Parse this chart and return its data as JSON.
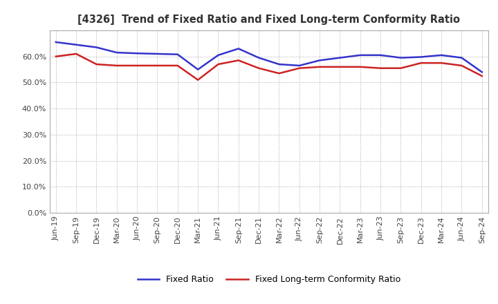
{
  "title": "[4326]  Trend of Fixed Ratio and Fixed Long-term Conformity Ratio",
  "x_labels": [
    "Jun-19",
    "Sep-19",
    "Dec-19",
    "Mar-20",
    "Jun-20",
    "Sep-20",
    "Dec-20",
    "Mar-21",
    "Jun-21",
    "Sep-21",
    "Dec-21",
    "Mar-22",
    "Jun-22",
    "Sep-22",
    "Dec-22",
    "Mar-23",
    "Jun-23",
    "Sep-23",
    "Dec-23",
    "Mar-24",
    "Jun-24",
    "Sep-24"
  ],
  "fixed_ratio": [
    65.5,
    64.5,
    63.5,
    61.5,
    61.2,
    61.0,
    60.8,
    55.0,
    60.5,
    63.0,
    59.5,
    57.0,
    56.5,
    58.5,
    59.5,
    60.5,
    60.5,
    59.5,
    59.8,
    60.5,
    59.5,
    54.0
  ],
  "fixed_lt_ratio": [
    60.0,
    61.0,
    57.0,
    56.5,
    56.5,
    56.5,
    56.5,
    51.0,
    57.0,
    58.5,
    55.5,
    53.5,
    55.5,
    56.0,
    56.0,
    56.0,
    55.5,
    55.5,
    57.5,
    57.5,
    56.5,
    52.5
  ],
  "fixed_ratio_color": "#3333cc",
  "fixed_lt_ratio_color": "#cc2222",
  "background_color": "#ffffff",
  "grid_color": "#aaaaaa",
  "ylim": [
    0,
    70
  ],
  "yticks": [
    0,
    10,
    20,
    30,
    40,
    50,
    60
  ],
  "legend_fixed": "Fixed Ratio",
  "legend_fixed_lt": "Fixed Long-term Conformity Ratio",
  "title_color": "#333333",
  "line_width": 1.8
}
